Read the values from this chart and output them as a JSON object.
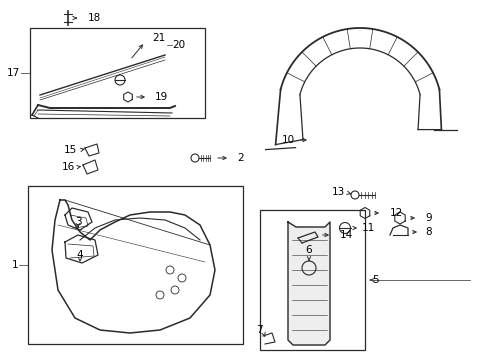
{
  "bg_color": "#ffffff",
  "line_color": "#2a2a2a",
  "text_color": "#000000",
  "fig_w": 4.9,
  "fig_h": 3.6,
  "dpi": 100
}
